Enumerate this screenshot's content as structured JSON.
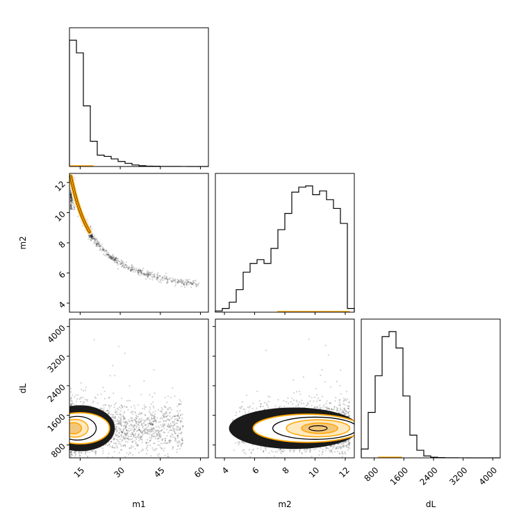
{
  "chart_data": {
    "type": "corner",
    "parameters": [
      "m1",
      "m2",
      "dL"
    ],
    "axis_labels": {
      "m1": "m1",
      "m2": "m2",
      "dL": "dL"
    },
    "colors": {
      "hist": "#000000",
      "overlay": "#ffa500",
      "scatter": "#000000"
    },
    "ranges": {
      "m1": [
        11,
        63
      ],
      "m2": [
        3.4,
        12.6
      ],
      "dL": [
        450,
        4200
      ]
    },
    "ticks": {
      "m1": {
        "values": [
          15,
          30,
          45,
          60
        ],
        "labels": [
          "15",
          "30",
          "45",
          "60"
        ]
      },
      "m2": {
        "values": [
          4,
          6,
          8,
          10,
          12
        ],
        "labels": [
          "4",
          "6",
          "8",
          "10",
          "12"
        ]
      },
      "dL": {
        "values": [
          800,
          1600,
          2400,
          3200,
          4000
        ],
        "labels": [
          "800",
          "1600",
          "2400",
          "3200",
          "4000"
        ]
      }
    },
    "histograms": {
      "m1": {
        "edges": [
          11,
          13.6,
          16.2,
          18.8,
          21.4,
          24,
          26.6,
          29.2,
          31.8,
          34.4,
          37,
          39.6,
          42.2,
          44.8,
          47.4,
          50,
          52.6,
          55.2,
          57.8,
          60.4,
          63
        ],
        "counts": [
          1,
          0.9,
          0.48,
          0.2,
          0.09,
          0.08,
          0.06,
          0.04,
          0.025,
          0.012,
          0.006,
          0.003,
          0.002,
          0.001,
          0.001,
          0.0005,
          0.0003,
          0.0002,
          0.0001,
          0
        ]
      },
      "m2": {
        "edges": [
          3.4,
          3.86,
          4.32,
          4.78,
          5.24,
          5.7,
          6.16,
          6.62,
          7.08,
          7.54,
          8.0,
          8.46,
          8.92,
          9.38,
          9.84,
          10.3,
          10.76,
          11.22,
          11.68,
          12.14,
          12.6
        ],
        "counts": [
          0.01,
          0.03,
          0.08,
          0.18,
          0.32,
          0.39,
          0.42,
          0.39,
          0.51,
          0.66,
          0.79,
          0.96,
          1.0,
          1.01,
          0.94,
          0.97,
          0.9,
          0.83,
          0.71,
          0.03
        ]
      },
      "dL": {
        "edges": [
          450,
          637.5,
          825,
          1012.5,
          1200,
          1387.5,
          1575,
          1762.5,
          1950,
          2137.5,
          2325,
          2512.5,
          2700,
          2887.5,
          3075,
          3262.5,
          3450,
          3637.5,
          3825,
          4012.5,
          4200
        ],
        "counts": [
          0.07,
          0.36,
          0.65,
          0.96,
          1.0,
          0.87,
          0.49,
          0.18,
          0.06,
          0.015,
          0.005,
          0.002,
          0.001,
          0.0005,
          0.0003,
          0.0001,
          0,
          0,
          0,
          0
        ]
      }
    },
    "overlay_hist_x_ranges": {
      "m1": [
        11,
        20
      ],
      "m2": [
        7.5,
        12.3
      ],
      "dL": [
        900,
        1550
      ]
    },
    "scatter_panels": [
      {
        "x": "m1",
        "y": "m2",
        "description_relation": "m2 decreases with m1 along narrow curve"
      },
      {
        "x": "m1",
        "y": "dL"
      },
      {
        "x": "m2",
        "y": "dL"
      }
    ]
  }
}
